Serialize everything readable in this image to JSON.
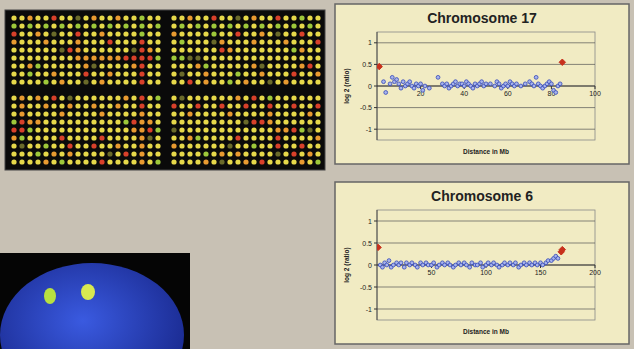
{
  "chart_data": [
    {
      "type": "scatter",
      "title": "Chromosome 17",
      "x_label": "Distance in Mb",
      "y_label": "log 2 (ratio)",
      "xlim": [
        0,
        100
      ],
      "xticks": [
        20,
        40,
        60,
        80,
        100
      ],
      "ylim": [
        -1.25,
        1.25
      ],
      "yticks": [
        -1,
        -0.5,
        0,
        0.5,
        1
      ],
      "grid": true,
      "series": [
        {
          "color": "#3348b8",
          "marker": "circle",
          "x": [
            3,
            4,
            6,
            7,
            8,
            9,
            10,
            11,
            12,
            13,
            14,
            15,
            16,
            17,
            18,
            19,
            20,
            21,
            22,
            24,
            28,
            30,
            31,
            32,
            33,
            34,
            35,
            36,
            37,
            38,
            39,
            40,
            41,
            42,
            43,
            44,
            45,
            46,
            47,
            48,
            49,
            50,
            52,
            54,
            55,
            56,
            57,
            58,
            59,
            60,
            61,
            62,
            63,
            64,
            66,
            68,
            70,
            71,
            72,
            73,
            74,
            75,
            76,
            77,
            78,
            79,
            80,
            81,
            82,
            83,
            84
          ],
          "values": [
            0.1,
            -0.15,
            0.05,
            0.2,
            0.1,
            0.15,
            0.05,
            -0.05,
            0.1,
            0,
            0.05,
            0.1,
            0,
            -0.05,
            0.05,
            0,
            0.05,
            -0.1,
            0,
            -0.05,
            0.2,
            0.05,
            0,
            0.05,
            -0.05,
            0,
            0.05,
            0.1,
            0,
            0.05,
            0.05,
            0,
            0.1,
            0.05,
            0,
            -0.05,
            0.05,
            0,
            0.05,
            0.1,
            0,
            0.05,
            0.05,
            0,
            0.1,
            0.05,
            -0.05,
            0,
            0.05,
            0,
            0.1,
            0.05,
            0,
            0.05,
            0,
            0.05,
            0.1,
            0.05,
            0,
            0.2,
            0.05,
            0,
            -0.05,
            0,
            0.05,
            0.1,
            0.05,
            -0.1,
            -0.15,
            0,
            0.05
          ]
        },
        {
          "color": "#c8301c",
          "marker": "diamond",
          "x": [
            1,
            85
          ],
          "values": [
            0.45,
            0.55
          ]
        }
      ]
    },
    {
      "type": "scatter",
      "title": "Chromosome 6",
      "x_label": "Distance in Mb",
      "y_label": "log 2 (ratio)",
      "xlim": [
        0,
        200
      ],
      "xticks": [
        50,
        100,
        150,
        200
      ],
      "ylim": [
        -1.25,
        1.25
      ],
      "yticks": [
        -1,
        -0.5,
        0,
        0.5,
        1
      ],
      "grid": true,
      "series": [
        {
          "color": "#3348b8",
          "marker": "circle",
          "x": [
            3,
            5,
            7,
            9,
            11,
            13,
            15,
            18,
            20,
            22,
            25,
            27,
            30,
            32,
            35,
            37,
            40,
            42,
            45,
            47,
            50,
            52,
            55,
            57,
            60,
            62,
            65,
            67,
            70,
            72,
            75,
            77,
            80,
            82,
            85,
            87,
            90,
            92,
            95,
            97,
            100,
            102,
            105,
            107,
            110,
            112,
            115,
            117,
            120,
            122,
            125,
            127,
            130,
            132,
            135,
            137,
            140,
            142,
            145,
            147,
            150,
            152,
            155,
            157,
            160,
            162,
            164,
            166
          ],
          "values": [
            0,
            -0.05,
            0.05,
            0,
            0.1,
            -0.05,
            0,
            0.05,
            0,
            0.05,
            -0.05,
            0.05,
            0,
            0.05,
            0,
            -0.05,
            0.05,
            0,
            0.05,
            0,
            0,
            0.05,
            -0.05,
            0,
            0.05,
            0,
            0.05,
            0,
            -0.05,
            0,
            0.05,
            0,
            0.05,
            0,
            -0.05,
            0.05,
            0,
            0,
            0.05,
            -0.05,
            0,
            0.05,
            0,
            0.05,
            0,
            -0.05,
            0,
            0.05,
            0,
            0.05,
            0,
            0.05,
            -0.05,
            0,
            0.05,
            0,
            0.05,
            0,
            0.05,
            0,
            0.05,
            0,
            0.05,
            0.1,
            0.1,
            0.15,
            0.2,
            0.15
          ]
        },
        {
          "color": "#c8301c",
          "marker": "diamond",
          "x": [
            1,
            169,
            170
          ],
          "values": [
            0.4,
            0.3,
            0.35
          ]
        }
      ]
    }
  ]
}
